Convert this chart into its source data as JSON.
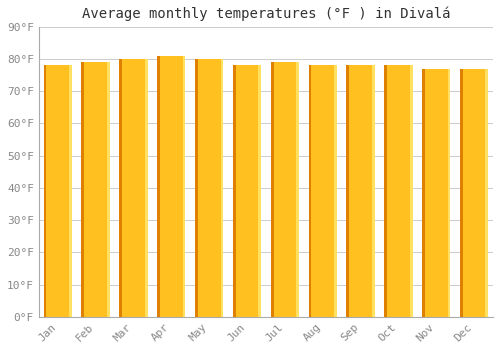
{
  "title": "Average monthly temperatures (°F ) in Divalá",
  "months": [
    "Jan",
    "Feb",
    "Mar",
    "Apr",
    "May",
    "Jun",
    "Jul",
    "Aug",
    "Sep",
    "Oct",
    "Nov",
    "Dec"
  ],
  "values": [
    78,
    79,
    80,
    81,
    80,
    78,
    79,
    78,
    78,
    78,
    77,
    77
  ],
  "bar_color_main": "#FFC020",
  "bar_color_left": "#E08000",
  "bar_color_right": "#FFE060",
  "ylim": [
    0,
    90
  ],
  "ytick_step": 10,
  "background_color": "#ffffff",
  "plot_bg_color": "#ffffff",
  "grid_color": "#cccccc",
  "title_fontsize": 10,
  "tick_fontsize": 8,
  "tick_color": "#888888",
  "bar_width": 0.75
}
